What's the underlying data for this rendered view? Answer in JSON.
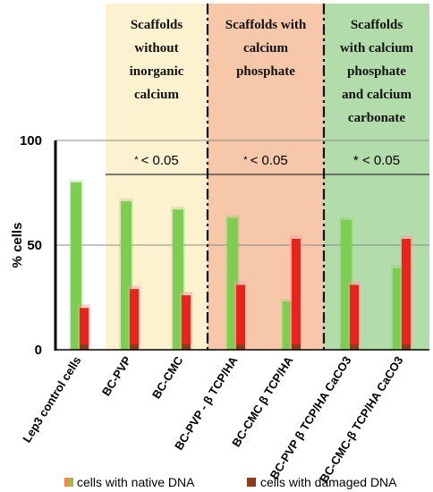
{
  "chart_data": {
    "type": "bar",
    "ylabel": "% cells",
    "ylim": [
      0,
      100
    ],
    "yticks": [
      "0",
      "50",
      "100"
    ],
    "grid": true,
    "legend_position": "bottom",
    "categories": [
      "Lep3 control cells",
      "BC-PVP",
      "BC-CMC",
      "BC-PVP - β TCP/HA",
      "BC-CMC β TCP/HA",
      "BC-PVP β TCP/HA CaCO3",
      "BC-CMC-β TCP/HA CaCO3"
    ],
    "series": [
      {
        "name": "cells with native DNA",
        "values": [
          80,
          71,
          67,
          63,
          23,
          62,
          39
        ]
      },
      {
        "name": "cells with damaged DNA",
        "values": [
          20,
          29,
          26,
          31,
          53,
          31,
          53
        ]
      }
    ],
    "colors": {
      "native": "#7ccd52",
      "damaged": "#e8241c",
      "dark_base": "#8b3a1a",
      "native_legend": "#f08a4a"
    },
    "groups": [
      {
        "title_lines": [
          "Scaffolds",
          "without",
          "inorganic",
          "calcium"
        ],
        "significance": "< 0.05",
        "marker": "*",
        "color": "#fdf2cf"
      },
      {
        "title_lines": [
          "Scaffolds with",
          "calcium",
          "phosphate"
        ],
        "significance": "< 0.05",
        "marker": "*",
        "color": "#f6c7a8"
      },
      {
        "title_lines": [
          "Scaffolds",
          "with calcium",
          "phosphate",
          "and calcium",
          "carbonate"
        ],
        "significance": "< 0.05",
        "marker": "*",
        "color": "#b3dcab"
      }
    ]
  }
}
